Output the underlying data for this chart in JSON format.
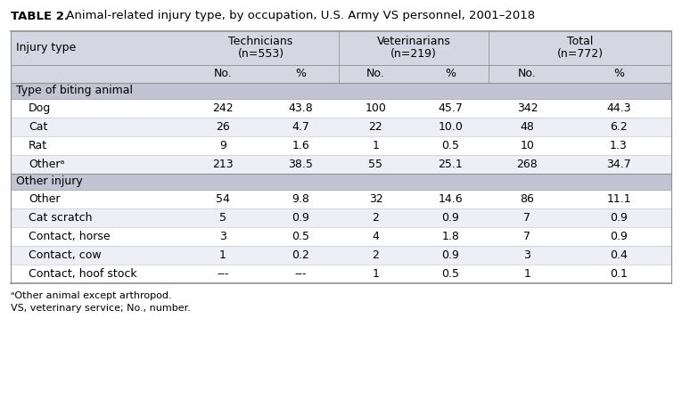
{
  "title_bold": "TABLE 2.",
  "title_rest": " Animal-related injury type, by occupation, U.S. Army VS personnel, 2001–2018",
  "section1_label": "Type of biting animal",
  "section2_label": "Other injury",
  "rows_s1": [
    {
      "label": "Dog",
      "tech_no": "242",
      "tech_pct": "43.8",
      "vet_no": "100",
      "vet_pct": "45.7",
      "tot_no": "342",
      "tot_pct": "44.3"
    },
    {
      "label": "Cat",
      "tech_no": "26",
      "tech_pct": "4.7",
      "vet_no": "22",
      "vet_pct": "10.0",
      "tot_no": "48",
      "tot_pct": "6.2"
    },
    {
      "label": "Rat",
      "tech_no": "9",
      "tech_pct": "1.6",
      "vet_no": "1",
      "vet_pct": "0.5",
      "tot_no": "10",
      "tot_pct": "1.3"
    },
    {
      "label": "Otherᵃ",
      "tech_no": "213",
      "tech_pct": "38.5",
      "vet_no": "55",
      "vet_pct": "25.1",
      "tot_no": "268",
      "tot_pct": "34.7"
    }
  ],
  "rows_s2": [
    {
      "label": "Other",
      "tech_no": "54",
      "tech_pct": "9.8",
      "vet_no": "32",
      "vet_pct": "14.6",
      "tot_no": "86",
      "tot_pct": "11.1"
    },
    {
      "label": "Cat scratch",
      "tech_no": "5",
      "tech_pct": "0.9",
      "vet_no": "2",
      "vet_pct": "0.9",
      "tot_no": "7",
      "tot_pct": "0.9"
    },
    {
      "label": "Contact, horse",
      "tech_no": "3",
      "tech_pct": "0.5",
      "vet_no": "4",
      "vet_pct": "1.8",
      "tot_no": "7",
      "tot_pct": "0.9"
    },
    {
      "label": "Contact, cow",
      "tech_no": "1",
      "tech_pct": "0.2",
      "vet_no": "2",
      "vet_pct": "0.9",
      "tot_no": "3",
      "tot_pct": "0.4"
    },
    {
      "label": "Contact, hoof stock",
      "tech_no": "---",
      "tech_pct": "---",
      "vet_no": "1",
      "vet_pct": "0.5",
      "tot_no": "1",
      "tot_pct": "0.1"
    }
  ],
  "footnote1": "ᵃOther animal except arthropod.",
  "footnote2": "VS, veterinary service; No., number.",
  "header_bg": "#d4d6e4",
  "section_bg": "#c2c4d4",
  "white": "#ffffff",
  "light_bg": "#eeeef6",
  "border_dark": "#909090",
  "border_light": "#c0c0c8"
}
